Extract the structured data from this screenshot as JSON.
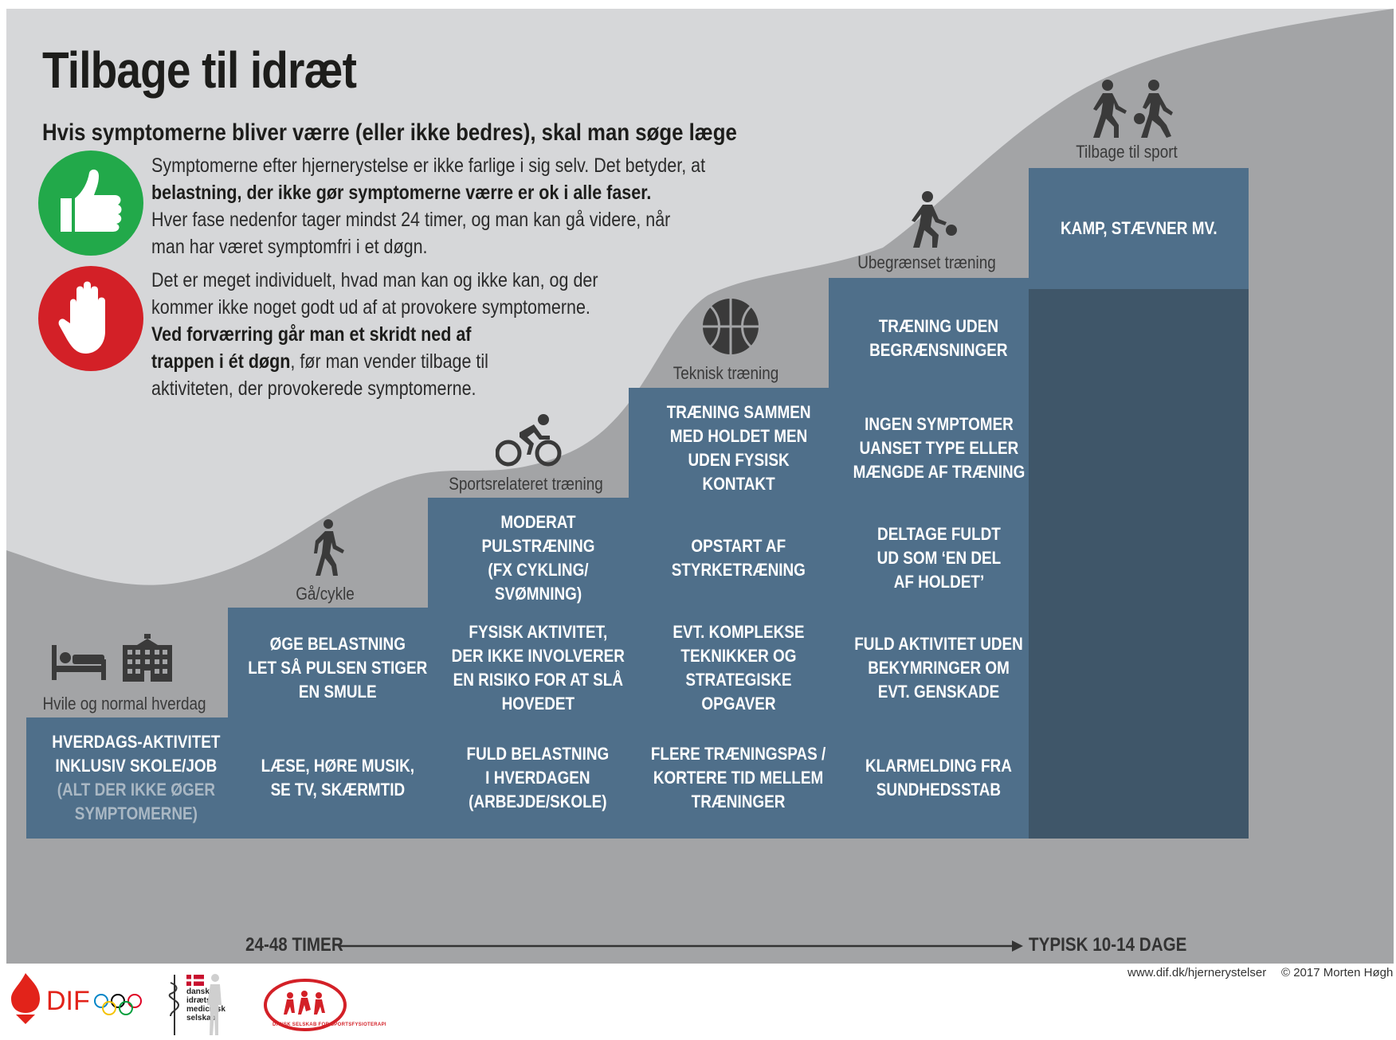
{
  "title": "Tilbage til idræt",
  "subtitle": "Hvis symptomerne bliver værre (eller ikke bedres), skal man søge læge",
  "info_good": {
    "line1": "Symptomerne efter hjernerystelse er ikke farlige i sig selv. Det betyder, at",
    "line2_bold": "belastning, der ikke gør symptomerne værre er ok i alle faser.",
    "line3": "Hver fase nedenfor tager mindst 24 timer, og man kan gå videre, når",
    "line4": "man har været symptomfri i et døgn.",
    "icon": "thumbs-up-icon",
    "color": "#22a94a"
  },
  "info_stop": {
    "line1": "Det er meget individuelt, hvad man kan og ikke kan, og der",
    "line2": "kommer ikke noget godt ud af at provokere symptomerne.",
    "line3_bold": "Ved forværring går man et skridt ned af",
    "line4_bold": "trappen i ét døgn",
    "line4_rest": ", før man vender tilbage til",
    "line5": "aktiviteten, der provokerede symptomerne.",
    "icon": "stop-hand-icon",
    "color": "#d32027"
  },
  "stages": [
    {
      "label": "Hvile og normal hverdag",
      "icons": [
        "bed-icon",
        "school-building-icon"
      ]
    },
    {
      "label": "Gå/cykle",
      "icons": [
        "walking-person-icon"
      ]
    },
    {
      "label": "Sportsrelateret træning",
      "icons": [
        "cyclist-icon"
      ]
    },
    {
      "label": "Teknisk træning",
      "icons": [
        "basketball-icon"
      ]
    },
    {
      "label": "Ubegrænset træning",
      "icons": [
        "dribbling-player-icon"
      ]
    },
    {
      "label": "Tilbage til sport",
      "icons": [
        "two-players-icon"
      ]
    }
  ],
  "cells": {
    "s1r1": {
      "lines": [
        "HVERDAGS-AKTIVITET",
        "INKLUSIV SKOLE/JOB"
      ],
      "muted": [
        "(ALT DER IKKE ØGER",
        "SYMPTOMERNE)"
      ]
    },
    "s2r1": {
      "lines": [
        "LÆSE, HØRE MUSIK,",
        "SE TV, SKÆRMTID"
      ]
    },
    "s2r2": {
      "lines": [
        "ØGE BELASTNING",
        "LET SÅ PULSEN STIGER",
        "EN SMULE"
      ]
    },
    "s3r1": {
      "lines": [
        "FULD BELASTNING",
        "I HVERDAGEN",
        "(ARBEJDE/SKOLE)"
      ]
    },
    "s3r2": {
      "lines": [
        "FYSISK AKTIVITET,",
        "DER IKKE INVOLVERER",
        "EN RISIKO FOR AT SLÅ",
        "HOVEDET"
      ]
    },
    "s3r3": {
      "lines": [
        "MODERAT",
        "PULSTRÆNING",
        "(FX CYKLING/",
        "SVØMNING)"
      ]
    },
    "s4r1": {
      "lines": [
        "FLERE TRÆNINGSPAS /",
        "KORTERE TID MELLEM",
        "TRÆNINGER"
      ]
    },
    "s4r2": {
      "lines": [
        "EVT. KOMPLEKSE",
        "TEKNIKKER OG",
        "STRATEGISKE",
        "OPGAVER"
      ]
    },
    "s4r3": {
      "lines": [
        "OPSTART AF",
        "STYRKETRÆNING"
      ]
    },
    "s4r4": {
      "lines": [
        "TRÆNING SAMMEN",
        "MED HOLDET MEN",
        "UDEN FYSISK",
        "KONTAKT"
      ]
    },
    "s5r1": {
      "lines": [
        "KLARMELDING FRA",
        "SUNDHEDSSTAB"
      ]
    },
    "s5r2": {
      "lines": [
        "FULD AKTIVITET UDEN",
        "BEKYMRINGER OM",
        "EVT. GENSKADE"
      ]
    },
    "s5r3": {
      "lines": [
        "DELTAGE FULDT",
        "UD SOM ‘EN DEL",
        "AF HOLDET’"
      ]
    },
    "s5r4": {
      "lines": [
        "INGEN SYMPTOMER",
        "UANSET TYPE ELLER",
        "MÆNGDE AF TRÆNING"
      ]
    },
    "s5r5": {
      "lines": [
        "TRÆNING UDEN",
        "BEGRÆNSNINGER"
      ]
    },
    "s6r6": {
      "lines": [
        "KAMP, STÆVNER MV."
      ]
    }
  },
  "axis": {
    "start": "24-48 TIMER",
    "end": "TYPISK 10-14 DAGE"
  },
  "footer": {
    "url": "www.dif.dk/hjernerystelser",
    "copyright": "© 2017 Morten Høgh"
  },
  "logos": [
    {
      "name": "dif-logo",
      "text": "DIF"
    },
    {
      "name": "dims-logo",
      "lines": [
        "dansk",
        "idræts",
        "medicinsk",
        "selskab"
      ]
    },
    {
      "name": "dssf-logo",
      "text": "DANSK SELSKAB FOR SPORTSFYSIOTERAPI"
    }
  ],
  "colors": {
    "cell": "#4f6f8a",
    "cell_dark": "#3f5669",
    "background_light": "#d6d7d9",
    "background_dark": "#a3a4a6",
    "good": "#22a94a",
    "stop": "#d32027",
    "brand_red": "#e2231a"
  }
}
